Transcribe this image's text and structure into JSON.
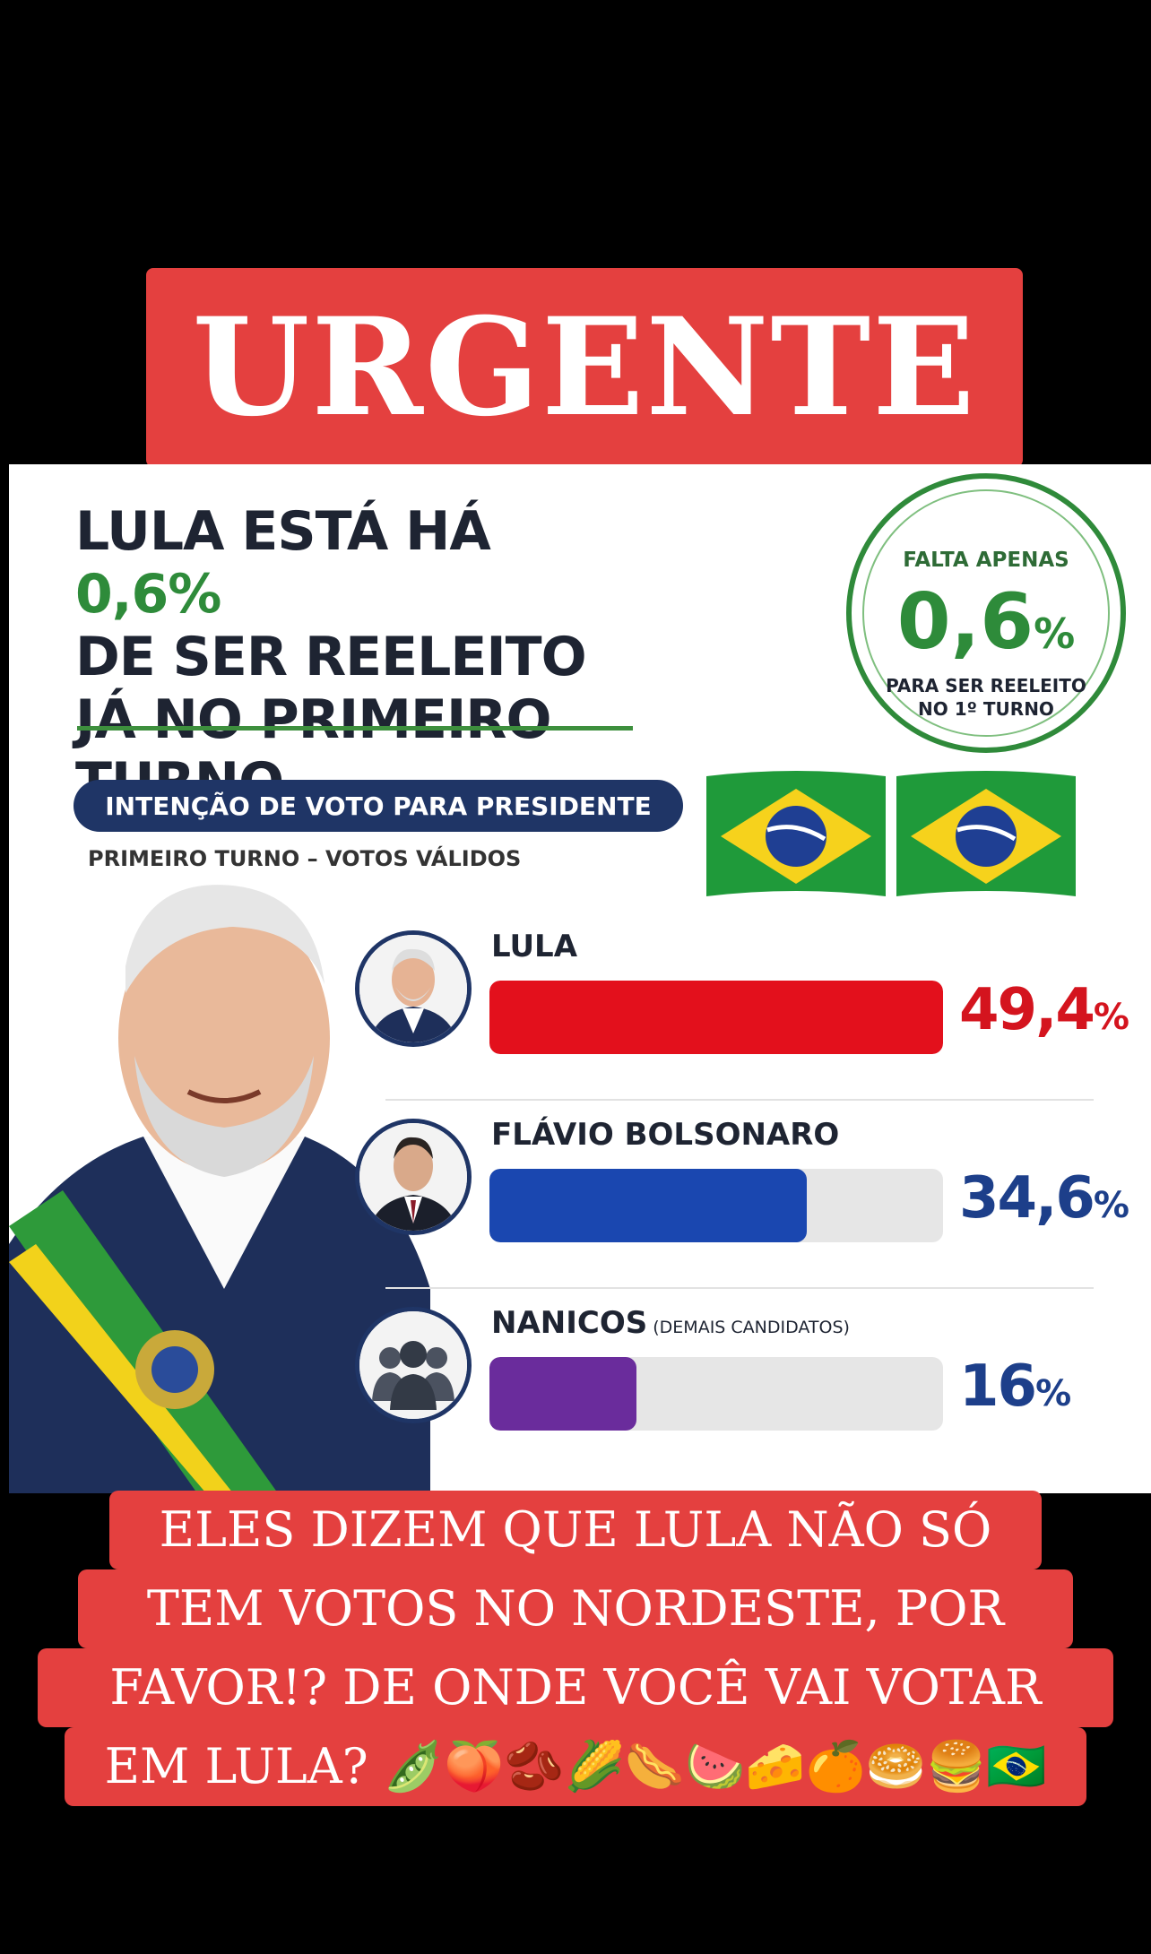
{
  "banner": {
    "text": "URGENTE"
  },
  "card": {
    "headline_before": "LULA ESTÁ HÁ ",
    "headline_value": "0,6%",
    "headline_after": "DE SER REELEITO JÁ NO PRIMEIRO TURNO.",
    "badge": {
      "top": "FALTA APENAS",
      "value": "0,6",
      "unit": "%",
      "bottom_1": "PARA SER REELEITO",
      "bottom_2": "NO 1º TURNO"
    },
    "pill": "INTENÇÃO DE VOTO PARA PRESIDENTE",
    "subtitle": "PRIMEIRO TURNO – VOTOS VÁLIDOS"
  },
  "chart_data": {
    "type": "bar",
    "orientation": "horizontal",
    "categories": [
      "LULA",
      "FLÁVIO BOLSONARO",
      "NANICOS"
    ],
    "category_notes": [
      "",
      "",
      "(DEMAIS CANDIDATOS)"
    ],
    "values": [
      49.4,
      34.6,
      16
    ],
    "value_labels": [
      "49,4",
      "34,6",
      "16"
    ],
    "unit": "%",
    "colors": [
      "#e3101c",
      "#1a47b0",
      "#6a2c9c"
    ],
    "label_colors": [
      "#d4141e",
      "#1d3f8a",
      "#1d3f8a"
    ],
    "xlim": [
      0,
      58
    ]
  },
  "caption": {
    "lines": [
      "ELES DIZEM QUE LULA NÃO SÓ",
      "TEM VOTOS NO NORDESTE, POR",
      "FAVOR!? DE ONDE VOCÊ VAI VOTAR",
      "EM LULA? 🫛🍑🫘🌽🌭🍉🧀🍊🥯🍔🇧🇷"
    ]
  },
  "colors": {
    "banner_red": "#e4403f",
    "navy": "#1f3566",
    "green": "#2e8b3a"
  }
}
